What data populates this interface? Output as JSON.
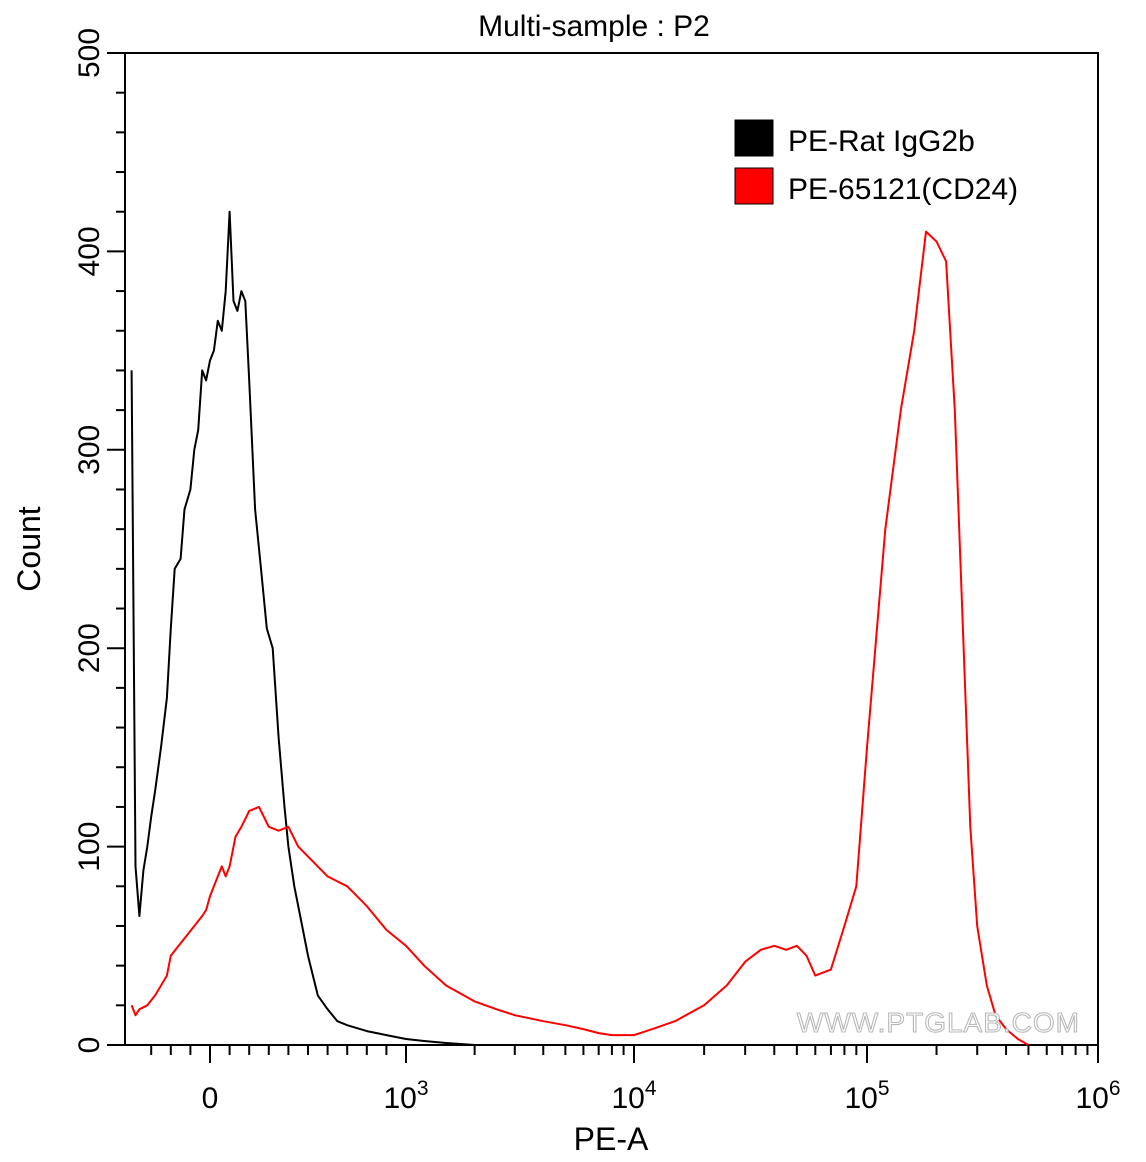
{
  "chart_data": {
    "type": "line",
    "title": "Multi-sample : P2",
    "xlabel": "PE-A",
    "ylabel": "Count",
    "ylim": [
      0,
      500
    ],
    "y_ticks": [
      0,
      100,
      200,
      300,
      400,
      500
    ],
    "x_scale": "biexponential",
    "x_ticks": [
      {
        "value": 0,
        "label": "0",
        "sup": ""
      },
      {
        "value": 1000,
        "label": "10",
        "sup": "3"
      },
      {
        "value": 10000,
        "label": "10",
        "sup": "4"
      },
      {
        "value": 100000,
        "label": "10",
        "sup": "5"
      },
      {
        "value": 1000000,
        "label": "10",
        "sup": "6"
      }
    ],
    "legend_position": "top-right",
    "watermark": "WWW.PTGLAB.COM",
    "series": [
      {
        "name": "PE-Rat IgG2b",
        "color": "#000000",
        "x": [
          -400,
          -380,
          -360,
          -340,
          -320,
          -300,
          -280,
          -250,
          -220,
          -200,
          -180,
          -150,
          -130,
          -100,
          -80,
          -60,
          -40,
          -20,
          0,
          20,
          40,
          60,
          80,
          100,
          120,
          140,
          160,
          180,
          200,
          230,
          260,
          290,
          320,
          350,
          380,
          400,
          430,
          460,
          500,
          550,
          600,
          650,
          700,
          800,
          900,
          1000,
          1200,
          1500,
          2000,
          3000
        ],
        "y": [
          340,
          90,
          65,
          88,
          100,
          115,
          128,
          150,
          175,
          210,
          240,
          245,
          270,
          280,
          300,
          310,
          340,
          335,
          345,
          350,
          365,
          360,
          380,
          420,
          375,
          370,
          380,
          375,
          335,
          270,
          240,
          210,
          200,
          155,
          120,
          100,
          80,
          65,
          45,
          25,
          18,
          12,
          10,
          7,
          5,
          3,
          2,
          1,
          0,
          0
        ]
      },
      {
        "name": "PE-65121(CD24)",
        "color": "#ff0000",
        "x": [
          -400,
          -380,
          -360,
          -320,
          -280,
          -250,
          -220,
          -200,
          -160,
          -120,
          -80,
          -40,
          -20,
          0,
          20,
          40,
          60,
          80,
          100,
          130,
          160,
          200,
          250,
          300,
          350,
          400,
          450,
          500,
          550,
          600,
          700,
          800,
          900,
          1000,
          1200,
          1500,
          2000,
          2500,
          3000,
          4000,
          5000,
          6000,
          7000,
          8000,
          10000,
          12000,
          15000,
          20000,
          25000,
          30000,
          35000,
          40000,
          45000,
          50000,
          55000,
          60000,
          70000,
          80000,
          90000,
          100000,
          120000,
          140000,
          160000,
          180000,
          200000,
          220000,
          240000,
          260000,
          280000,
          300000,
          330000,
          360000,
          400000,
          450000,
          500000
        ],
        "y": [
          20,
          15,
          18,
          20,
          25,
          30,
          35,
          45,
          50,
          55,
          60,
          65,
          68,
          75,
          80,
          85,
          90,
          85,
          90,
          105,
          110,
          118,
          120,
          110,
          108,
          110,
          100,
          95,
          90,
          85,
          80,
          70,
          58,
          50,
          40,
          30,
          22,
          18,
          15,
          12,
          10,
          8,
          6,
          5,
          5,
          8,
          12,
          20,
          30,
          42,
          48,
          50,
          48,
          50,
          45,
          35,
          38,
          60,
          80,
          150,
          260,
          320,
          360,
          410,
          405,
          395,
          320,
          210,
          110,
          60,
          30,
          15,
          8,
          3,
          0
        ]
      }
    ]
  }
}
